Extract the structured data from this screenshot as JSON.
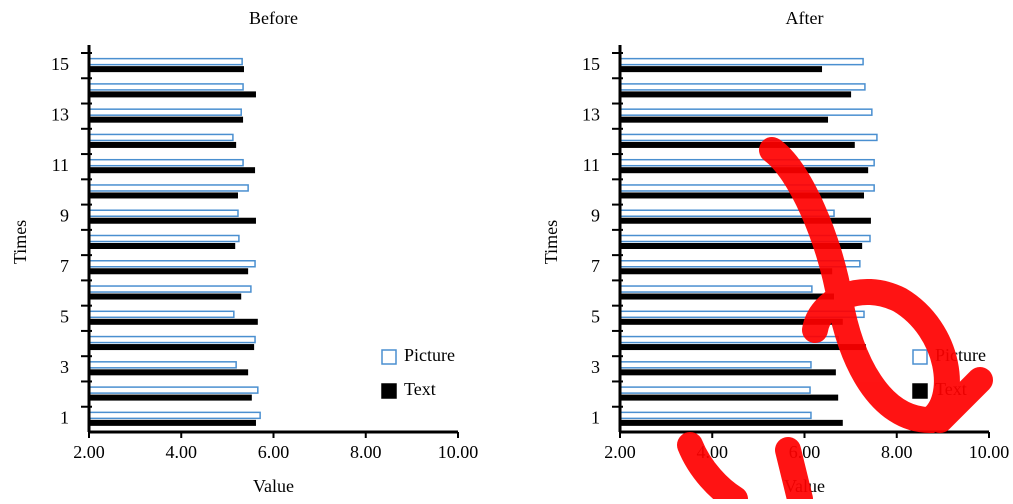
{
  "chart_data": [
    {
      "type": "bar",
      "orientation": "horizontal",
      "title": "Before",
      "xlabel": "Value",
      "ylabel": "Times",
      "categories": [
        "1",
        null,
        "3",
        null,
        "5",
        null,
        "7",
        null,
        "9",
        null,
        "11",
        null,
        "13",
        null,
        "15"
      ],
      "series": [
        {
          "name": "Picture",
          "color": "#4a8fd0",
          "fill": "#ffffff",
          "values": [
            5.71,
            5.66,
            5.19,
            5.6,
            5.14,
            5.51,
            5.6,
            5.25,
            5.23,
            5.45,
            5.34,
            5.12,
            5.3,
            5.34,
            5.32
          ]
        },
        {
          "name": "Text",
          "color": "#000000",
          "fill": "#000000",
          "values": [
            5.62,
            5.53,
            5.45,
            5.58,
            5.66,
            5.3,
            5.45,
            5.17,
            5.62,
            5.23,
            5.6,
            5.19,
            5.34,
            5.62,
            5.36
          ]
        }
      ],
      "xlim": [
        2,
        10
      ],
      "xticks": [
        {
          "value": 2,
          "label": "2.00"
        },
        {
          "value": 4,
          "label": "4.00"
        },
        {
          "value": 6,
          "label": "6.00"
        },
        {
          "value": 8,
          "label": "8.00"
        },
        {
          "value": 10,
          "label": "10.00"
        }
      ],
      "legend": "lower right"
    },
    {
      "type": "bar",
      "orientation": "horizontal",
      "title": "After",
      "xlabel": "Value",
      "ylabel": "Times",
      "categories": [
        "1",
        null,
        "3",
        null,
        "5",
        null,
        "7",
        null,
        "9",
        null,
        "11",
        null,
        "13",
        null,
        "15"
      ],
      "series": [
        {
          "name": "Picture",
          "color": "#4a8fd0",
          "fill": "#ffffff",
          "values": [
            6.14,
            6.12,
            6.14,
            6.73,
            7.29,
            6.16,
            7.2,
            7.42,
            6.64,
            7.51,
            7.51,
            7.57,
            7.46,
            7.31,
            7.27
          ]
        },
        {
          "name": "Text",
          "color": "#000000",
          "fill": "#000000",
          "values": [
            6.83,
            6.73,
            6.68,
            7.33,
            6.83,
            6.64,
            6.6,
            7.25,
            7.44,
            7.29,
            7.38,
            7.09,
            6.51,
            7.01,
            6.38
          ]
        }
      ],
      "xlim": [
        2,
        10
      ],
      "xticks": [
        {
          "value": 2,
          "label": "2.00"
        },
        {
          "value": 4,
          "label": "4.00"
        },
        {
          "value": 6,
          "label": "6.00"
        },
        {
          "value": 8,
          "label": "8.00"
        },
        {
          "value": 10,
          "label": "10.00"
        }
      ],
      "legend": "lower right"
    }
  ]
}
